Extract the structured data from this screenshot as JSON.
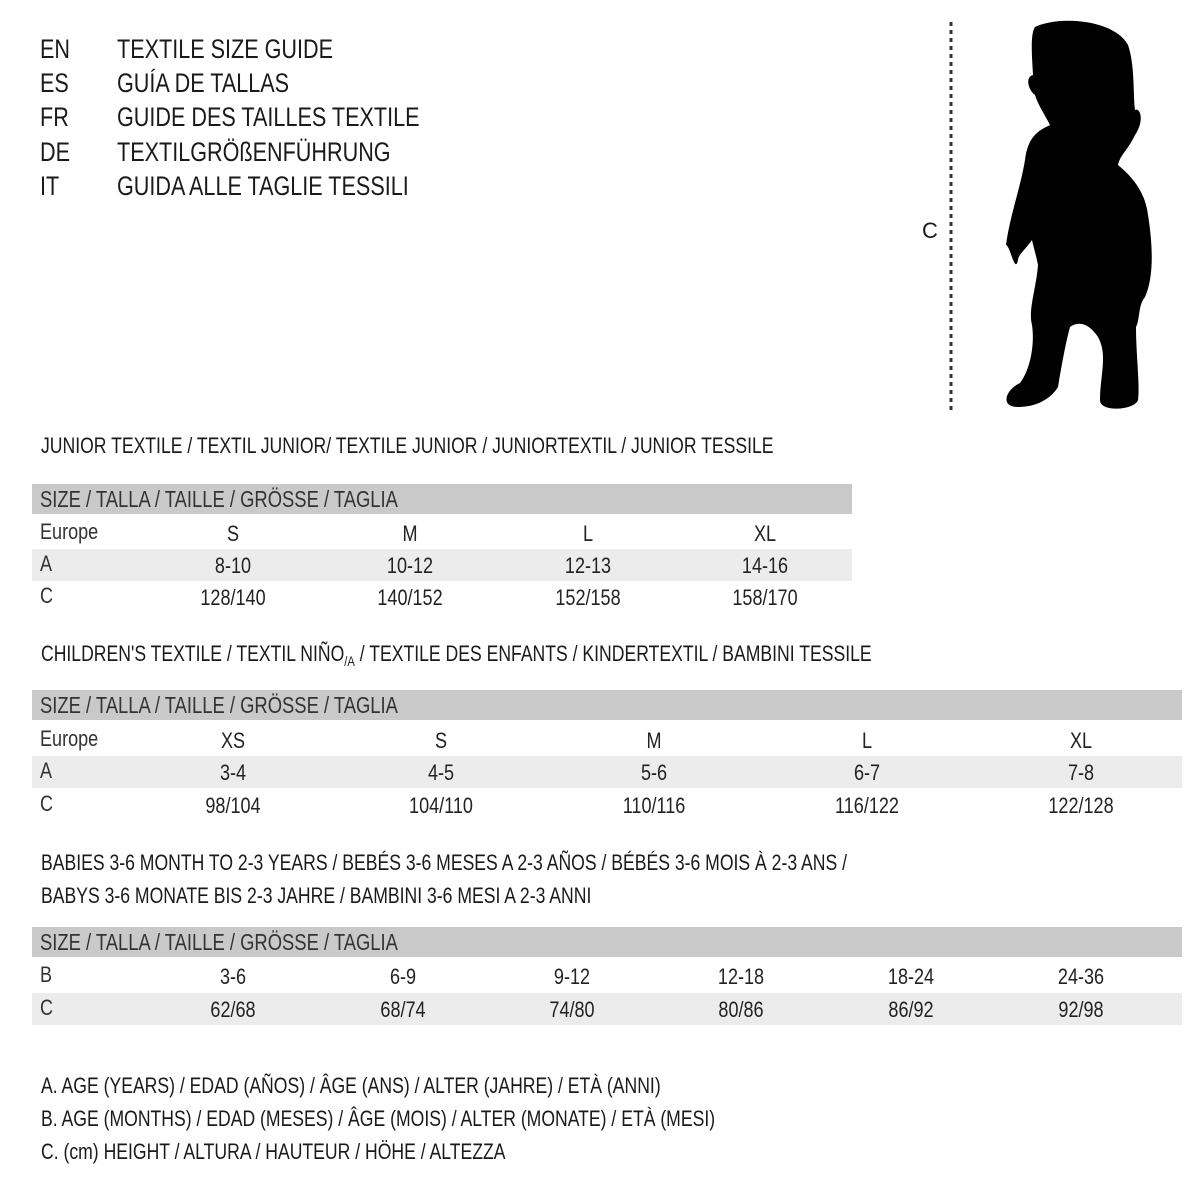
{
  "header": {
    "languages": [
      {
        "code": "EN",
        "title": "TEXTILE SIZE GUIDE"
      },
      {
        "code": "ES",
        "title": "GUÍA DE TALLAS"
      },
      {
        "code": "FR",
        "title": "GUIDE DES TAILLES TEXTILE"
      },
      {
        "code": "DE",
        "title": "TEXTILGRÖßENFÜHRUNG"
      },
      {
        "code": "IT",
        "title": "GUIDA ALLE TAGLIE TESSILI"
      }
    ]
  },
  "figure": {
    "measure_label": "C",
    "icon": "child-silhouette-icon"
  },
  "colors": {
    "header_bar": "#c9c9c9",
    "alt_row": "#ececec",
    "text": "#1a1a1a"
  },
  "junior": {
    "title": "JUNIOR TEXTILE / TEXTIL JUNIOR/ TEXTILE JUNIOR / JUNIORTEXTIL / JUNIOR TESSILE",
    "header": "SIZE / TALLA / TAILLE / GRÖSSE / TAGLIA",
    "rows": [
      {
        "label": "Europe",
        "cells": [
          "S",
          "M",
          "L",
          "XL"
        ]
      },
      {
        "label": "A",
        "cells": [
          "8-10",
          "10-12",
          "12-13",
          "14-16"
        ]
      },
      {
        "label": "C",
        "cells": [
          "128/140",
          "140/152",
          "152/158",
          "158/170"
        ]
      }
    ]
  },
  "children": {
    "title_prefix": "CHILDREN'S TEXTILE / TEXTIL NIÑO",
    "title_sub": "/A",
    "title_suffix": " / TEXTILE DES ENFANTS / KINDERTEXTIL / BAMBINI TESSILE",
    "header": "SIZE / TALLA / TAILLE / GRÖSSE / TAGLIA",
    "rows": [
      {
        "label": "Europe",
        "cells": [
          "XS",
          "S",
          "M",
          "L",
          "XL"
        ]
      },
      {
        "label": "A",
        "cells": [
          "3-4",
          "4-5",
          "5-6",
          "6-7",
          "7-8"
        ]
      },
      {
        "label": "C",
        "cells": [
          "98/104",
          "104/110",
          "110/116",
          "116/122",
          "122/128"
        ]
      }
    ]
  },
  "babies": {
    "title_line1": "BABIES 3-6 MONTH TO 2-3 YEARS / BEBÉS 3-6 MESES A 2-3 AÑOS / BÉBÉS 3-6 MOIS À 2-3 ANS /",
    "title_line2": "BABYS 3-6 MONATE BIS 2-3 JAHRE / BAMBINI 3-6 MESI A 2-3 ANNI",
    "header": "SIZE / TALLA / TAILLE / GRÖSSE / TAGLIA",
    "rows": [
      {
        "label": "B",
        "cells": [
          "3-6",
          "6-9",
          "9-12",
          "12-18",
          "18-24",
          "24-36"
        ]
      },
      {
        "label": "C",
        "cells": [
          "62/68",
          "68/74",
          "74/80",
          "80/86",
          "86/92",
          "92/98"
        ]
      }
    ]
  },
  "legend": [
    "A. AGE (YEARS) / EDAD (AÑOS) / ÂGE (ANS) / ALTER (JAHRE) / ETÀ (ANNI)",
    "B. AGE (MONTHS) / EDAD (MESES) / ÂGE (MOIS) / ALTER (MONATE) / ETÀ (MESI)",
    "C. (cm) HEIGHT / ALTURA / HAUTEUR / HÖHE / ALTEZZA"
  ]
}
